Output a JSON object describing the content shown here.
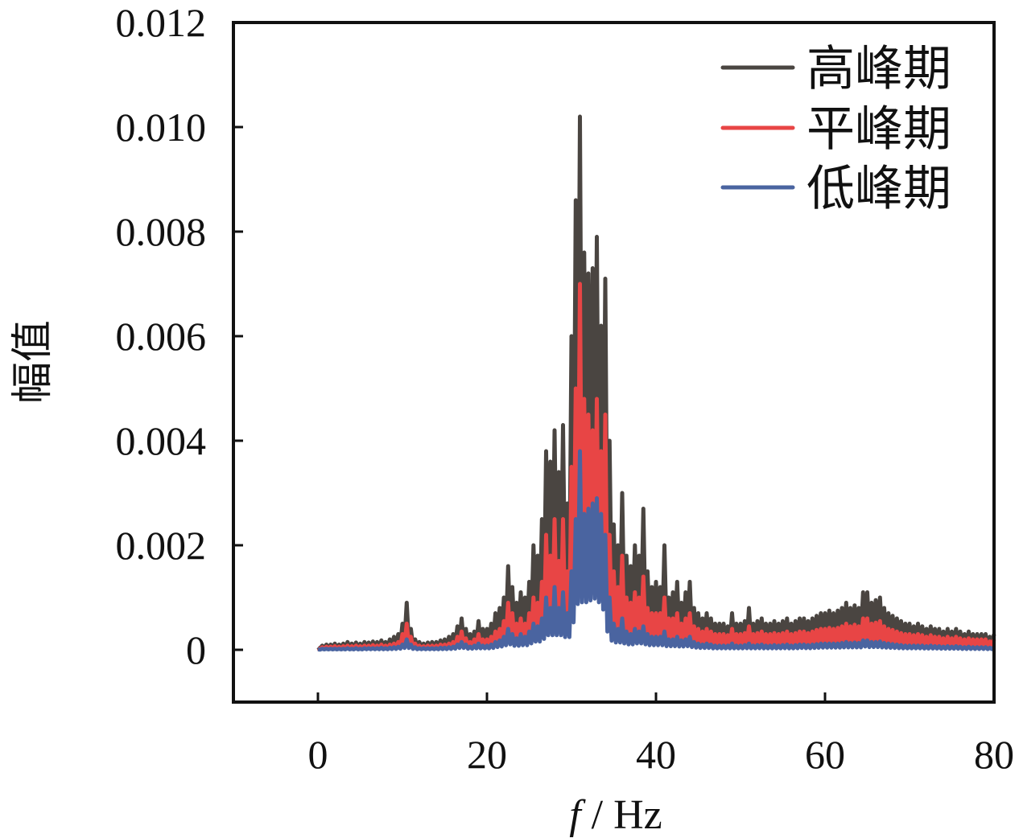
{
  "chart_data": {
    "type": "line",
    "title": "",
    "xlabel_italic": "f",
    "xlabel_rest": " / Hz",
    "ylabel": "幅值",
    "xlim": [
      -10,
      80
    ],
    "ylim": [
      -0.001,
      0.012
    ],
    "xticks": [
      0,
      20,
      40,
      60,
      80
    ],
    "xtick_labels": [
      "0",
      "20",
      "40",
      "60",
      "80"
    ],
    "yticks": [
      0,
      0.002,
      0.004,
      0.006,
      0.008,
      0.01,
      0.012
    ],
    "ytick_labels": [
      "0",
      "0.002",
      "0.004",
      "0.006",
      "0.008",
      "0.010",
      "0.012"
    ],
    "grid": false,
    "legend_position": "top-right",
    "x": [
      0,
      0.5,
      1,
      1.5,
      2,
      2.5,
      3,
      3.5,
      4,
      4.5,
      5,
      5.5,
      6,
      6.5,
      7,
      7.5,
      8,
      8.5,
      9,
      9.5,
      10,
      10.5,
      11,
      11.5,
      12,
      12.5,
      13,
      13.5,
      14,
      14.5,
      15,
      15.5,
      16,
      16.5,
      17,
      17.5,
      18,
      18.5,
      19,
      19.5,
      20,
      20.5,
      21,
      21.5,
      22,
      22.5,
      23,
      23.5,
      24,
      24.5,
      25,
      25.5,
      26,
      26.5,
      27,
      27.5,
      28,
      28.5,
      29,
      29.5,
      30,
      30.5,
      31,
      31.5,
      32,
      32.5,
      33,
      33.5,
      34,
      34.5,
      35,
      35.5,
      36,
      36.5,
      37,
      37.5,
      38,
      38.5,
      39,
      39.5,
      40,
      40.5,
      41,
      41.5,
      42,
      42.5,
      43,
      43.5,
      44,
      44.5,
      45,
      45.5,
      46,
      46.5,
      47,
      47.5,
      48,
      48.5,
      49,
      49.5,
      50,
      50.5,
      51,
      51.5,
      52,
      52.5,
      53,
      53.5,
      54,
      54.5,
      55,
      55.5,
      56,
      56.5,
      57,
      57.5,
      58,
      58.5,
      59,
      59.5,
      60,
      60.5,
      61,
      61.5,
      62,
      62.5,
      63,
      63.5,
      64,
      64.5,
      65,
      65.5,
      66,
      66.5,
      67,
      67.5,
      68,
      68.5,
      69,
      69.5,
      70,
      70.5,
      71,
      71.5,
      72,
      72.5,
      73,
      73.5,
      74,
      74.5,
      75,
      75.5,
      76,
      76.5,
      77,
      77.5,
      78,
      78.5,
      79,
      79.5,
      80
    ],
    "series": [
      {
        "name": "高峰期",
        "color": "#4a4541",
        "values": [
          5e-05,
          8e-05,
          0.0001,
          0.0001,
          0.00012,
          0.0001,
          0.00012,
          0.00015,
          0.00012,
          0.00014,
          0.00012,
          0.00015,
          0.00014,
          0.00016,
          0.00015,
          0.00018,
          0.00015,
          0.0002,
          0.00025,
          0.0003,
          0.0005,
          0.0009,
          0.0004,
          0.0002,
          0.00015,
          0.00012,
          0.00014,
          0.00015,
          0.00015,
          0.00018,
          0.0002,
          0.00025,
          0.0003,
          0.00045,
          0.0006,
          0.0004,
          0.0003,
          0.00035,
          0.00055,
          0.0004,
          0.0004,
          0.0005,
          0.0007,
          0.0008,
          0.001,
          0.0016,
          0.0012,
          0.0009,
          0.0011,
          0.001,
          0.0013,
          0.002,
          0.0018,
          0.0025,
          0.0038,
          0.0036,
          0.0042,
          0.0034,
          0.0043,
          0.0028,
          0.006,
          0.0086,
          0.0102,
          0.0076,
          0.0072,
          0.0073,
          0.0079,
          0.0062,
          0.0071,
          0.004,
          0.0024,
          0.002,
          0.003,
          0.0018,
          0.0016,
          0.002,
          0.0018,
          0.0027,
          0.0015,
          0.0012,
          0.0013,
          0.0012,
          0.002,
          0.001,
          0.0011,
          0.0013,
          0.0009,
          0.0011,
          0.0013,
          0.0008,
          0.0007,
          0.0006,
          0.0007,
          0.0006,
          0.0005,
          0.0005,
          0.0005,
          0.00045,
          0.0007,
          0.0005,
          0.0005,
          0.00055,
          0.0008,
          0.0005,
          0.00055,
          0.0006,
          0.0005,
          0.0005,
          0.00055,
          0.0005,
          0.00055,
          0.0006,
          0.0005,
          0.00055,
          0.0006,
          0.0006,
          0.00055,
          0.0006,
          0.00065,
          0.0007,
          0.0007,
          0.00075,
          0.0007,
          0.00075,
          0.0008,
          0.0009,
          0.0008,
          0.00085,
          0.0008,
          0.0011,
          0.0011,
          0.0009,
          0.00095,
          0.001,
          0.0008,
          0.0007,
          0.00065,
          0.0006,
          0.00055,
          0.0005,
          0.0005,
          0.00045,
          0.0005,
          0.00045,
          0.0004,
          0.00045,
          0.0004,
          0.0004,
          0.00035,
          0.0004,
          0.00035,
          0.0004,
          0.00035,
          0.0003,
          0.00035,
          0.0003,
          0.0003,
          0.0003,
          0.0003,
          0.00025,
          0.0003
        ]
      },
      {
        "name": "平峰期",
        "color": "#e84545",
        "values": [
          3e-05,
          5e-05,
          6e-05,
          6e-05,
          7e-05,
          6e-05,
          7e-05,
          8e-05,
          7e-05,
          8e-05,
          7e-05,
          8e-05,
          8e-05,
          9e-05,
          8e-05,
          0.0001,
          8e-05,
          0.0001,
          0.00012,
          0.00015,
          0.0003,
          0.0005,
          0.00025,
          0.00012,
          8e-05,
          7e-05,
          8e-05,
          8e-05,
          8e-05,
          0.0001,
          0.0001,
          0.00012,
          0.00015,
          0.00025,
          0.00035,
          0.00022,
          0.00015,
          0.0002,
          0.0003,
          0.0002,
          0.0002,
          0.00025,
          0.00035,
          0.0004,
          0.00055,
          0.0009,
          0.0007,
          0.0005,
          0.0006,
          0.0005,
          0.0007,
          0.001,
          0.0009,
          0.0013,
          0.0022,
          0.0018,
          0.0025,
          0.0017,
          0.0025,
          0.0015,
          0.0035,
          0.005,
          0.007,
          0.0048,
          0.0045,
          0.0042,
          0.0048,
          0.0038,
          0.0045,
          0.0022,
          0.0015,
          0.0012,
          0.0018,
          0.001,
          0.0009,
          0.0011,
          0.001,
          0.0014,
          0.0008,
          0.0007,
          0.0007,
          0.0007,
          0.001,
          0.0006,
          0.0006,
          0.0007,
          0.0005,
          0.0006,
          0.0007,
          0.00045,
          0.0004,
          0.00035,
          0.0004,
          0.00035,
          0.0003,
          0.0003,
          0.0003,
          0.00028,
          0.0004,
          0.0003,
          0.0003,
          0.00032,
          0.00045,
          0.0003,
          0.00032,
          0.00035,
          0.0003,
          0.0003,
          0.00032,
          0.0003,
          0.00032,
          0.00035,
          0.0003,
          0.00032,
          0.00035,
          0.00035,
          0.00032,
          0.00035,
          0.00038,
          0.0004,
          0.0004,
          0.00042,
          0.0004,
          0.00042,
          0.00045,
          0.0005,
          0.00045,
          0.00048,
          0.00045,
          0.0006,
          0.0006,
          0.0005,
          0.00052,
          0.00055,
          0.00045,
          0.0004,
          0.00038,
          0.00035,
          0.00032,
          0.0003,
          0.0003,
          0.00028,
          0.0003,
          0.00028,
          0.00025,
          0.00028,
          0.00025,
          0.00025,
          0.00022,
          0.00025,
          0.00022,
          0.00025,
          0.00022,
          0.0002,
          0.00022,
          0.0002,
          0.0002,
          0.0002,
          0.0002,
          0.00016,
          0.0002
        ]
      },
      {
        "name": "低峰期",
        "color": "#4a64a0",
        "values": [
          1e-05,
          2e-05,
          2e-05,
          2e-05,
          2e-05,
          2e-05,
          2e-05,
          3e-05,
          2e-05,
          3e-05,
          2e-05,
          3e-05,
          3e-05,
          3e-05,
          3e-05,
          4e-05,
          3e-05,
          4e-05,
          5e-05,
          6e-05,
          0.0001,
          0.0002,
          0.0001,
          5e-05,
          3e-05,
          3e-05,
          3e-05,
          3e-05,
          3e-05,
          4e-05,
          4e-05,
          5e-05,
          6e-05,
          0.0001,
          0.00015,
          0.0001,
          6e-05,
          8e-05,
          0.00012,
          8e-05,
          8e-05,
          0.0001,
          0.00015,
          0.00018,
          0.00025,
          0.0004,
          0.0003,
          0.00022,
          0.0003,
          0.00025,
          0.00035,
          0.0005,
          0.00045,
          0.0006,
          0.001,
          0.0008,
          0.0012,
          0.0008,
          0.0011,
          0.0007,
          0.0015,
          0.0025,
          0.0038,
          0.0026,
          0.0027,
          0.0028,
          0.0029,
          0.0026,
          0.0022,
          0.001,
          0.0005,
          0.0004,
          0.0006,
          0.00035,
          0.0003,
          0.0004,
          0.00035,
          0.00045,
          0.0003,
          0.00025,
          0.00025,
          0.00025,
          0.00035,
          0.0002,
          0.0002,
          0.00025,
          0.00018,
          0.0002,
          0.00025,
          0.00015,
          0.00012,
          0.0001,
          0.00012,
          0.0001,
          8e-05,
          8e-05,
          8e-05,
          8e-05,
          0.00012,
          8e-05,
          8e-05,
          9e-05,
          0.00012,
          8e-05,
          9e-05,
          0.0001,
          8e-05,
          8e-05,
          9e-05,
          8e-05,
          9e-05,
          0.0001,
          8e-05,
          9e-05,
          0.0001,
          0.0001,
          9e-05,
          0.0001,
          0.00011,
          0.00012,
          0.00012,
          0.00012,
          0.00012,
          0.00012,
          0.00013,
          0.00015,
          0.00013,
          0.00014,
          0.00013,
          0.00018,
          0.00018,
          0.00015,
          0.00015,
          0.00016,
          0.00013,
          0.00012,
          0.00011,
          0.0001,
          9e-05,
          8e-05,
          8e-05,
          8e-05,
          8e-05,
          8e-05,
          7e-05,
          8e-05,
          7e-05,
          7e-05,
          6e-05,
          7e-05,
          6e-05,
          7e-05,
          6e-05,
          5e-05,
          6e-05,
          5e-05,
          5e-05,
          5e-05,
          5e-05,
          4e-05,
          5e-05
        ]
      }
    ]
  }
}
